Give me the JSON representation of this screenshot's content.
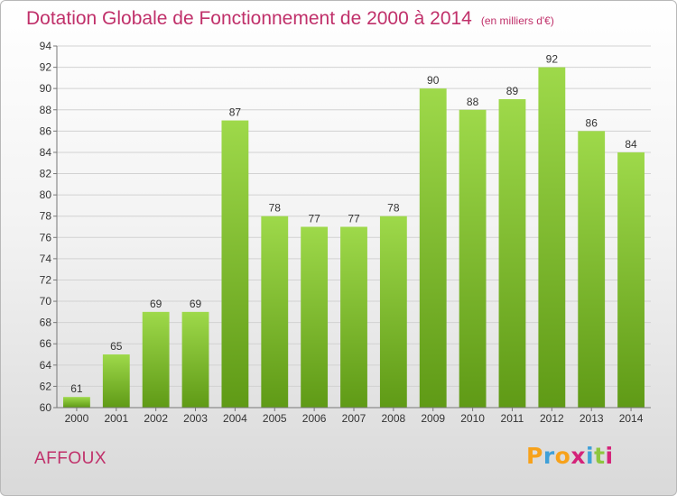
{
  "header": {
    "title": "Dotation Globale de Fonctionnement de 2000 à 2014",
    "unit": "(en milliers d'€)"
  },
  "place": "AFFOUX",
  "logo": {
    "letters": [
      "P",
      "r",
      "o",
      "x",
      "i",
      "t",
      "i"
    ],
    "colors": [
      "#f7a21b",
      "#3fa0d8",
      "#f7a21b",
      "#d4237a",
      "#3fa0d8",
      "#8dc63f",
      "#d4237a"
    ]
  },
  "chart_data": {
    "type": "bar",
    "categories": [
      "2000",
      "2001",
      "2002",
      "2003",
      "2004",
      "2005",
      "2006",
      "2007",
      "2008",
      "2009",
      "2010",
      "2011",
      "2012",
      "2013",
      "2014"
    ],
    "values": [
      61,
      65,
      69,
      69,
      87,
      78,
      77,
      77,
      78,
      90,
      88,
      89,
      92,
      86,
      84
    ],
    "title": "Dotation Globale de Fonctionnement de 2000 à 2014",
    "xlabel": "",
    "ylabel": "",
    "ylim": [
      60,
      94
    ],
    "yticks": [
      60,
      62,
      64,
      66,
      68,
      70,
      72,
      74,
      76,
      78,
      80,
      82,
      84,
      86,
      88,
      90,
      92,
      94
    ],
    "grid": true,
    "bar_color_top": "#9ed94a",
    "bar_color_bottom": "#5f9a16"
  }
}
